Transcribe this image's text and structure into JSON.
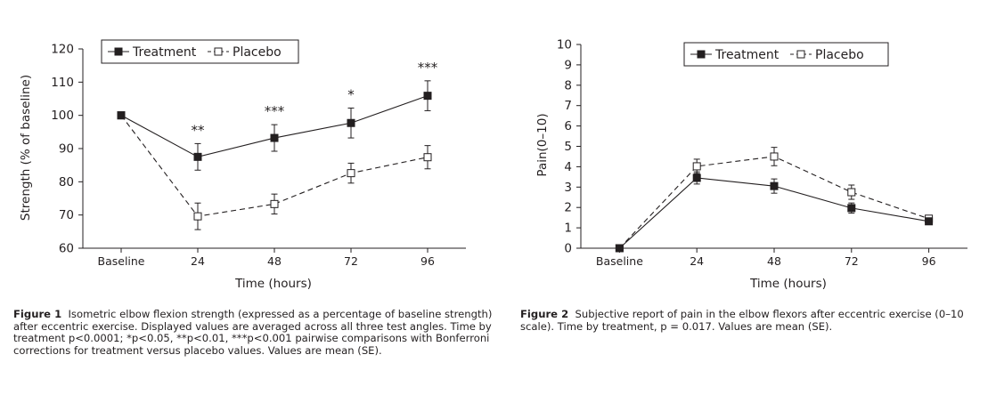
{
  "chart_data": [
    {
      "type": "line",
      "categories": [
        "Baseline",
        "24",
        "48",
        "72",
        "96"
      ],
      "xlabel": "Time (hours)",
      "ylabel": "Strength (% of baseline)",
      "ylim": [
        60,
        120
      ],
      "yticks": [
        60,
        70,
        80,
        90,
        100,
        110,
        120
      ],
      "legend_placement": "top",
      "grid": false,
      "series": [
        {
          "name": "Treatment",
          "values": [
            100,
            87.5,
            93.2,
            97.7,
            105.9
          ],
          "se": [
            0,
            4,
            4,
            4.5,
            4.5
          ],
          "marker": "filled-square",
          "line": "solid"
        },
        {
          "name": "Placebo",
          "values": [
            100,
            69.6,
            73.3,
            82.6,
            87.4
          ],
          "se": [
            0,
            4,
            3,
            3,
            3.5
          ],
          "marker": "open-square",
          "line": "dashed"
        }
      ],
      "annotations": [
        "",
        "**",
        "***",
        "*",
        "***"
      ]
    },
    {
      "type": "line",
      "categories": [
        "Baseline",
        "24",
        "48",
        "72",
        "96"
      ],
      "xlabel": "Time (hours)",
      "ylabel": "Pain(0–10)",
      "ylim": [
        0,
        10
      ],
      "yticks": [
        0,
        1,
        2,
        3,
        4,
        5,
        6,
        7,
        8,
        9,
        10
      ],
      "legend_placement": "top",
      "grid": false,
      "series": [
        {
          "name": "Treatment",
          "values": [
            0,
            3.45,
            3.05,
            1.97,
            1.32
          ],
          "se": [
            0,
            0.3,
            0.35,
            0.25,
            0.1
          ],
          "marker": "filled-square",
          "line": "solid"
        },
        {
          "name": "Placebo",
          "values": [
            0,
            4.02,
            4.5,
            2.75,
            1.45
          ],
          "se": [
            0,
            0.35,
            0.45,
            0.35,
            0.1
          ],
          "marker": "open-square",
          "line": "dashed"
        }
      ]
    }
  ],
  "captions": [
    {
      "label": "Figure 1",
      "text": "Isometric elbow flexion strength (expressed as a percentage of baseline strength) after eccentric exercise. Displayed values are averaged across all three test angles. Time by treatment p<0.0001; *p<0.05, **p<0.01, ***p<0.001 pairwise comparisons with Bonferroni corrections for treatment versus placebo values. Values are mean (SE)."
    },
    {
      "label": "Figure 2",
      "text": "Subjective report of pain in the elbow flexors after eccentric exercise (0–10 scale). Time by treatment, p = 0.017. Values are mean (SE)."
    }
  ]
}
